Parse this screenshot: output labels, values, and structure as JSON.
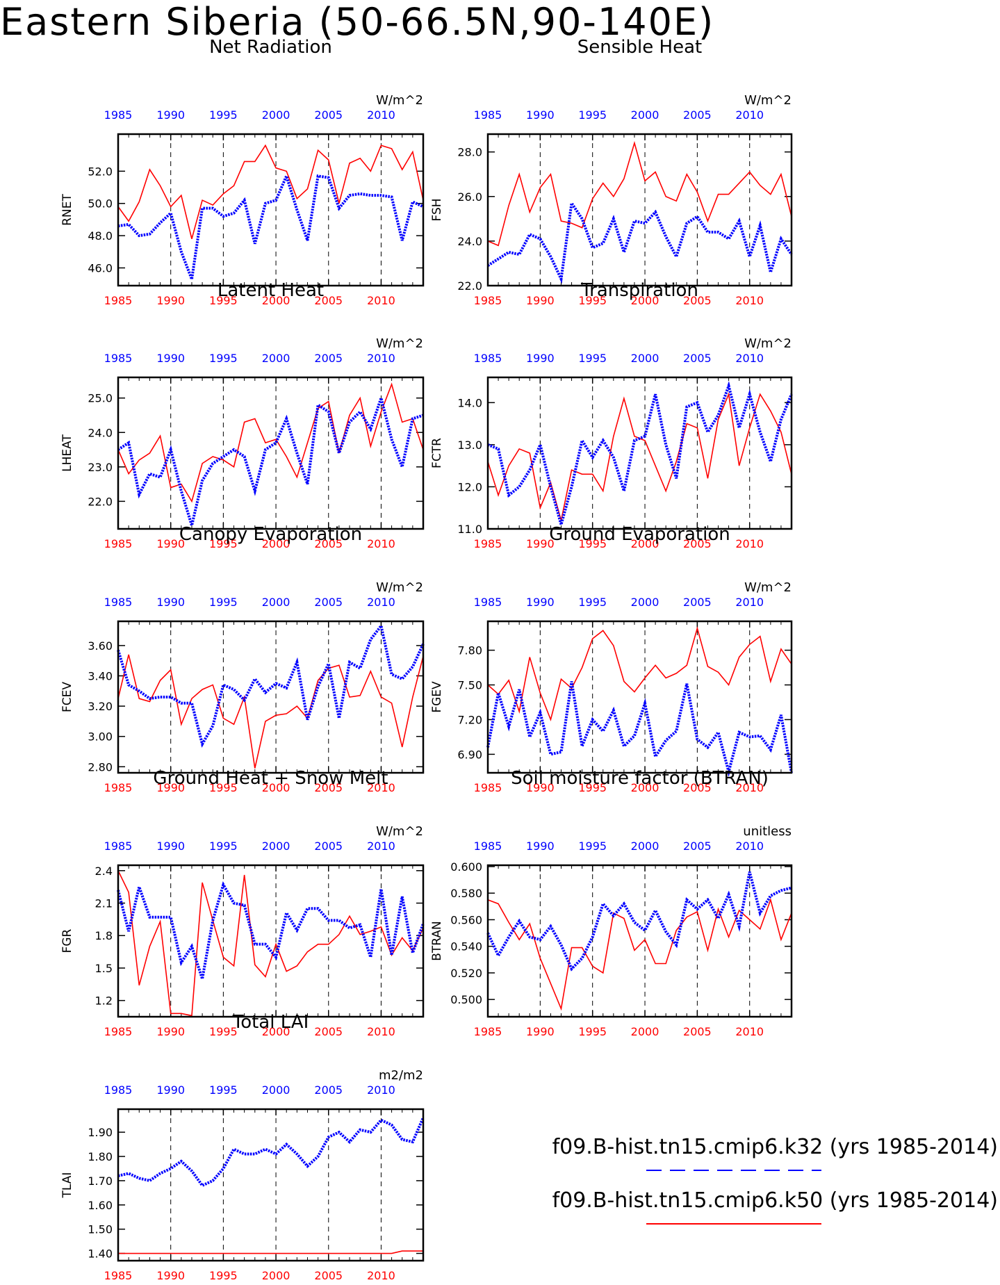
{
  "title": "Eastern Siberia (50-66.5N,90-140E)",
  "colors": {
    "case1": "#0000ff",
    "case2": "#ff0000",
    "axis": "#000000"
  },
  "legend": {
    "entries": [
      {
        "label": "f09.B-hist.tn15.cmip6.k32 (yrs 1985-2014)",
        "color": "#0000ff",
        "style": "dashed"
      },
      {
        "label": "f09.B-hist.tn15.cmip6.k50 (yrs 1985-2014)",
        "color": "#ff0000",
        "style": "solid"
      }
    ]
  },
  "chart_data": [
    {
      "type": "line",
      "title": "Net Radiation",
      "ylabel": "RNET",
      "units": "W/m^2",
      "ylim": [
        44.9,
        54.3
      ],
      "yticks": [
        "46.0",
        "48.0",
        "50.0",
        "52.0"
      ],
      "xlim": [
        1985,
        2014
      ],
      "xticks": [
        "1985",
        "1990",
        "1995",
        "2000",
        "2005",
        "2010"
      ],
      "series": [
        {
          "values": [
            48.6,
            48.7,
            48.0,
            48.1,
            48.8,
            49.4,
            47.0,
            45.3,
            49.7,
            49.7,
            49.2,
            49.4,
            50.2,
            47.5,
            50.0,
            50.2,
            51.7,
            49.6,
            47.7,
            51.7,
            51.6,
            49.7,
            50.5,
            50.6,
            50.5,
            50.5,
            50.4,
            47.7,
            50.1,
            49.8
          ]
        },
        {
          "values": [
            49.8,
            48.9,
            50.1,
            52.1,
            51.1,
            49.8,
            50.5,
            47.8,
            50.2,
            49.9,
            50.6,
            51.1,
            52.6,
            52.6,
            53.6,
            52.2,
            52.0,
            50.3,
            50.9,
            53.3,
            52.7,
            50.0,
            52.5,
            52.8,
            52.0,
            53.6,
            53.4,
            52.1,
            53.2,
            50.2
          ]
        }
      ]
    },
    {
      "type": "line",
      "title": "Sensible Heat",
      "ylabel": "FSH",
      "units": "W/m^2",
      "ylim": [
        22.0,
        28.8
      ],
      "yticks": [
        "22.0",
        "24.0",
        "26.0",
        "28.0"
      ],
      "xlim": [
        1985,
        2014
      ],
      "xticks": [
        "1985",
        "1990",
        "1995",
        "2000",
        "2005",
        "2010"
      ],
      "series": [
        {
          "values": [
            22.9,
            23.2,
            23.5,
            23.4,
            24.3,
            24.1,
            23.3,
            22.3,
            25.7,
            25.0,
            23.7,
            23.9,
            25.0,
            23.5,
            24.9,
            24.8,
            25.3,
            24.2,
            23.3,
            24.8,
            25.1,
            24.4,
            24.4,
            24.1,
            24.9,
            23.3,
            24.7,
            22.6,
            24.1,
            23.4
          ]
        },
        {
          "values": [
            24.0,
            23.8,
            25.6,
            27.0,
            25.3,
            26.4,
            27.0,
            24.9,
            24.8,
            24.6,
            25.9,
            26.6,
            26.0,
            26.8,
            28.4,
            26.7,
            27.1,
            26.0,
            25.8,
            27.0,
            26.2,
            24.9,
            26.1,
            26.1,
            26.6,
            27.1,
            26.5,
            26.1,
            27.0,
            25.1
          ]
        }
      ]
    },
    {
      "type": "line",
      "title": "Latent Heat",
      "ylabel": "LHEAT",
      "units": "W/m^2",
      "ylim": [
        21.2,
        25.6
      ],
      "yticks": [
        "22.0",
        "23.0",
        "24.0",
        "25.0"
      ],
      "xlim": [
        1985,
        2014
      ],
      "xticks": [
        "1985",
        "1990",
        "1995",
        "2000",
        "2005",
        "2010"
      ],
      "series": [
        {
          "values": [
            23.5,
            23.7,
            22.2,
            22.8,
            22.7,
            23.5,
            22.3,
            21.3,
            22.6,
            23.1,
            23.3,
            23.5,
            23.3,
            22.3,
            23.5,
            23.7,
            24.4,
            23.4,
            22.5,
            24.8,
            24.6,
            23.4,
            24.3,
            24.6,
            24.1,
            25.0,
            23.8,
            23.0,
            24.4,
            24.5
          ]
        },
        {
          "values": [
            23.5,
            22.8,
            23.2,
            23.4,
            23.9,
            22.4,
            22.5,
            22.0,
            23.1,
            23.3,
            23.2,
            23.0,
            24.3,
            24.4,
            23.7,
            23.8,
            23.3,
            22.7,
            23.7,
            24.7,
            24.9,
            23.4,
            24.5,
            25.0,
            23.6,
            24.6,
            25.4,
            24.3,
            24.4,
            23.5
          ]
        }
      ]
    },
    {
      "type": "line",
      "title": "Transpiration",
      "ylabel": "FCTR",
      "units": "W/m^2",
      "ylim": [
        11.0,
        14.6
      ],
      "yticks": [
        "11.0",
        "12.0",
        "13.0",
        "14.0"
      ],
      "xlim": [
        1985,
        2014
      ],
      "xticks": [
        "1985",
        "1990",
        "1995",
        "2000",
        "2005",
        "2010"
      ],
      "series": [
        {
          "values": [
            13.0,
            12.9,
            11.8,
            12.0,
            12.4,
            13.0,
            12.0,
            11.1,
            12.0,
            13.1,
            12.7,
            13.1,
            12.7,
            11.9,
            13.1,
            13.2,
            14.2,
            13.0,
            12.2,
            13.9,
            14.0,
            13.3,
            13.7,
            14.4,
            13.4,
            14.2,
            13.3,
            12.6,
            13.6,
            14.2
          ]
        },
        {
          "values": [
            12.6,
            11.8,
            12.5,
            12.9,
            12.8,
            11.5,
            12.1,
            11.2,
            12.4,
            12.3,
            12.3,
            11.9,
            13.2,
            14.1,
            13.2,
            13.1,
            12.5,
            11.9,
            12.6,
            13.5,
            13.4,
            12.2,
            13.6,
            14.2,
            12.5,
            13.4,
            14.2,
            13.8,
            13.3,
            12.3
          ]
        }
      ]
    },
    {
      "type": "line",
      "title": "Canopy Evaporation",
      "ylabel": "FCEV",
      "units": "W/m^2",
      "ylim": [
        2.76,
        3.76
      ],
      "yticks": [
        "2.80",
        "3.00",
        "3.20",
        "3.40",
        "3.60"
      ],
      "xlim": [
        1985,
        2014
      ],
      "xticks": [
        "1985",
        "1990",
        "1995",
        "2000",
        "2005",
        "2010"
      ],
      "series": [
        {
          "values": [
            3.57,
            3.34,
            3.3,
            3.25,
            3.26,
            3.26,
            3.22,
            3.22,
            2.95,
            3.07,
            3.34,
            3.31,
            3.24,
            3.38,
            3.29,
            3.35,
            3.32,
            3.49,
            3.11,
            3.33,
            3.48,
            3.12,
            3.49,
            3.45,
            3.64,
            3.73,
            3.41,
            3.38,
            3.46,
            3.61
          ]
        },
        {
          "values": [
            3.25,
            3.54,
            3.25,
            3.23,
            3.37,
            3.44,
            3.08,
            3.25,
            3.31,
            3.34,
            3.12,
            3.08,
            3.26,
            2.79,
            3.1,
            3.14,
            3.15,
            3.2,
            3.12,
            3.37,
            3.45,
            3.47,
            3.26,
            3.27,
            3.43,
            3.26,
            3.22,
            2.93,
            3.26,
            3.53
          ]
        }
      ]
    },
    {
      "type": "line",
      "title": "Ground Evaporation",
      "ylabel": "FGEV",
      "units": "W/m^2",
      "ylim": [
        6.74,
        8.05
      ],
      "yticks": [
        "6.90",
        "7.20",
        "7.50",
        "7.80"
      ],
      "xlim": [
        1985,
        2014
      ],
      "xticks": [
        "1985",
        "1990",
        "1995",
        "2000",
        "2005",
        "2010"
      ],
      "series": [
        {
          "values": [
            6.96,
            7.43,
            7.14,
            7.46,
            7.05,
            7.26,
            6.9,
            6.92,
            7.53,
            6.97,
            7.2,
            7.1,
            7.28,
            6.97,
            7.06,
            7.34,
            6.88,
            7.02,
            7.1,
            7.51,
            7.03,
            6.96,
            7.09,
            6.75,
            7.09,
            7.05,
            7.06,
            6.94,
            7.24,
            6.74
          ]
        },
        {
          "values": [
            7.5,
            7.42,
            7.54,
            7.27,
            7.74,
            7.43,
            7.2,
            7.55,
            7.47,
            7.65,
            7.9,
            7.97,
            7.84,
            7.53,
            7.44,
            7.56,
            7.67,
            7.56,
            7.6,
            7.67,
            7.99,
            7.66,
            7.61,
            7.5,
            7.74,
            7.85,
            7.92,
            7.53,
            7.81,
            7.68
          ]
        }
      ]
    },
    {
      "type": "line",
      "title": "Ground Heat + Snow Melt",
      "ylabel": "FGR",
      "units": "W/m^2",
      "ylim": [
        1.05,
        2.45
      ],
      "yticks": [
        "1.2",
        "1.5",
        "1.8",
        "2.1",
        "2.4"
      ],
      "xlim": [
        1985,
        2014
      ],
      "xticks": [
        "1985",
        "1990",
        "1995",
        "2000",
        "2005",
        "2010"
      ],
      "series": [
        {
          "values": [
            2.22,
            1.84,
            2.25,
            1.97,
            1.97,
            1.97,
            1.55,
            1.7,
            1.4,
            1.94,
            2.27,
            2.1,
            2.08,
            1.72,
            1.72,
            1.6,
            2.01,
            1.85,
            2.05,
            2.05,
            1.94,
            1.94,
            1.87,
            1.9,
            1.6,
            2.23,
            1.62,
            2.16,
            1.64,
            1.91
          ]
        },
        {
          "values": [
            2.4,
            2.2,
            1.34,
            1.7,
            1.93,
            1.08,
            1.08,
            1.06,
            2.29,
            1.94,
            1.6,
            1.52,
            2.36,
            1.53,
            1.42,
            1.72,
            1.47,
            1.52,
            1.65,
            1.72,
            1.72,
            1.81,
            1.98,
            1.81,
            1.84,
            1.88,
            1.62,
            1.78,
            1.66,
            1.87
          ]
        }
      ]
    },
    {
      "type": "line",
      "title": "Soil moisture factor (BTRAN)",
      "ylabel": "BTRAN",
      "units": "unitless",
      "ylim": [
        0.487,
        0.601
      ],
      "yticks": [
        "0.500",
        "0.520",
        "0.540",
        "0.560",
        "0.580",
        "0.600"
      ],
      "xlim": [
        1985,
        2014
      ],
      "xticks": [
        "1985",
        "1990",
        "1995",
        "2000",
        "2005",
        "2010"
      ],
      "series": [
        {
          "values": [
            0.55,
            0.533,
            0.547,
            0.559,
            0.547,
            0.545,
            0.555,
            0.541,
            0.523,
            0.531,
            0.547,
            0.572,
            0.563,
            0.572,
            0.558,
            0.552,
            0.567,
            0.551,
            0.541,
            0.575,
            0.568,
            0.575,
            0.561,
            0.579,
            0.555,
            0.596,
            0.565,
            0.578,
            0.582,
            0.584
          ]
        },
        {
          "values": [
            0.575,
            0.572,
            0.558,
            0.545,
            0.557,
            0.531,
            0.512,
            0.493,
            0.539,
            0.539,
            0.525,
            0.52,
            0.565,
            0.561,
            0.537,
            0.545,
            0.527,
            0.527,
            0.552,
            0.562,
            0.566,
            0.537,
            0.568,
            0.547,
            0.567,
            0.56,
            0.553,
            0.575,
            0.545,
            0.565
          ]
        }
      ]
    },
    {
      "type": "line",
      "title": "Total LAI",
      "ylabel": "TLAI",
      "units": "m2/m2",
      "ylim": [
        1.37,
        1.995
      ],
      "yticks": [
        "1.40",
        "1.50",
        "1.60",
        "1.70",
        "1.80",
        "1.90"
      ],
      "xlim": [
        1985,
        2014
      ],
      "xticks": [
        "1985",
        "1990",
        "1995",
        "2000",
        "2005",
        "2010"
      ],
      "series": [
        {
          "values": [
            1.72,
            1.73,
            1.71,
            1.7,
            1.73,
            1.75,
            1.78,
            1.74,
            1.68,
            1.7,
            1.75,
            1.83,
            1.81,
            1.81,
            1.83,
            1.81,
            1.85,
            1.81,
            1.76,
            1.8,
            1.88,
            1.9,
            1.86,
            1.91,
            1.9,
            1.95,
            1.93,
            1.87,
            1.86,
            1.96
          ]
        },
        {
          "values": [
            1.4,
            1.4,
            1.4,
            1.4,
            1.4,
            1.4,
            1.4,
            1.4,
            1.4,
            1.4,
            1.4,
            1.4,
            1.4,
            1.4,
            1.4,
            1.4,
            1.4,
            1.4,
            1.4,
            1.4,
            1.4,
            1.4,
            1.4,
            1.4,
            1.4,
            1.4,
            1.4,
            1.41,
            1.41,
            1.41
          ]
        }
      ]
    }
  ]
}
